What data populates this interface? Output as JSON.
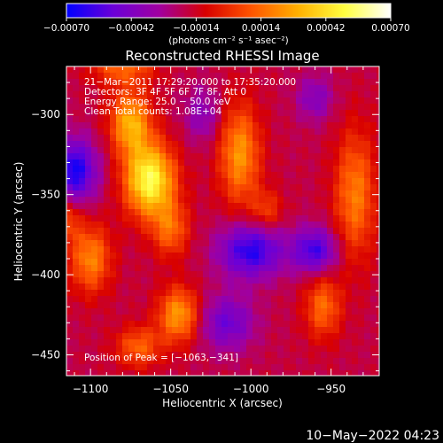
{
  "chart_data": {
    "type": "heatmap",
    "title": "Reconstructed RHESSI Image",
    "xlabel": "Heliocentric X (arcsec)",
    "ylabel": "Heliocentric Y (arcsec)",
    "xlim": [
      -1115,
      -920
    ],
    "ylim": [
      -463,
      -270
    ],
    "x_ticks": [
      -1100,
      -1050,
      -1000,
      -950
    ],
    "y_ticks": [
      -300,
      -350,
      -400,
      -450
    ],
    "x_tick_labels": [
      "−1100",
      "−1050",
      "−1000",
      "−950"
    ],
    "y_tick_labels": [
      "−300",
      "−350",
      "−400",
      "−450"
    ],
    "colorbar": {
      "range": [
        -0.0007,
        0.0007
      ],
      "ticks": [
        -0.0007,
        -0.00042,
        -0.00014,
        0.00014,
        0.00042,
        0.0007
      ],
      "tick_labels": [
        "−0.00070",
        "−0.00042",
        "−0.00014",
        "0.00014",
        "0.00042",
        "0.00070"
      ],
      "unit_label": "(photons cm⁻² s⁻¹ asec⁻²)",
      "colormap": [
        "#0000ff",
        "#6a00d8",
        "#a000a0",
        "#d80000",
        "#ff5500",
        "#ffb000",
        "#ffff40",
        "#ffffff"
      ]
    },
    "annotations": [
      "21−Mar−2011 17:29:20.000 to 17:35:20.000",
      "Detectors: 3F 4F 5F 6F 7F 8F, Att 0",
      "Energy Range: 25.0 − 50.0 keV",
      "Clean     Total counts: 1.08E+04"
    ],
    "peak_label": "Position of Peak = [−1063,−341]",
    "peak": [
      -1063,
      -341
    ],
    "sources": [
      {
        "x": -1063,
        "y": -341,
        "amp": 0.0007,
        "sx": 11,
        "sy": 16
      },
      {
        "x": -1075,
        "y": -305,
        "amp": 0.00048,
        "sx": 9,
        "sy": 14
      },
      {
        "x": -1050,
        "y": -372,
        "amp": 0.0003,
        "sx": 8,
        "sy": 12
      },
      {
        "x": -1007,
        "y": -325,
        "amp": 0.00042,
        "sx": 9,
        "sy": 22
      },
      {
        "x": -990,
        "y": -360,
        "amp": 0.00022,
        "sx": 7,
        "sy": 9
      },
      {
        "x": -935,
        "y": -350,
        "amp": 0.00036,
        "sx": 9,
        "sy": 28
      },
      {
        "x": -1045,
        "y": -425,
        "amp": 0.00044,
        "sx": 9,
        "sy": 12
      },
      {
        "x": -1070,
        "y": -445,
        "amp": 0.0003,
        "sx": 10,
        "sy": 9
      },
      {
        "x": -1100,
        "y": -390,
        "amp": 0.00038,
        "sx": 9,
        "sy": 15
      },
      {
        "x": -1115,
        "y": -365,
        "amp": 0.00025,
        "sx": 6,
        "sy": 10
      },
      {
        "x": -955,
        "y": -420,
        "amp": 0.00032,
        "sx": 8,
        "sy": 14
      },
      {
        "x": -1080,
        "y": -270,
        "amp": 0.0003,
        "sx": 14,
        "sy": 8
      },
      {
        "x": -1110,
        "y": -335,
        "amp": -0.00048,
        "sx": 10,
        "sy": 14
      },
      {
        "x": -1000,
        "y": -385,
        "amp": -0.00045,
        "sx": 14,
        "sy": 12
      },
      {
        "x": -960,
        "y": -385,
        "amp": -0.0004,
        "sx": 10,
        "sy": 10
      },
      {
        "x": -1015,
        "y": -430,
        "amp": -0.0003,
        "sx": 12,
        "sy": 12
      },
      {
        "x": -1030,
        "y": -300,
        "amp": -0.0002,
        "sx": 8,
        "sy": 12
      },
      {
        "x": -960,
        "y": -290,
        "amp": -0.00022,
        "sx": 8,
        "sy": 10
      }
    ]
  },
  "timestamp": "10−May−2022 04:23"
}
